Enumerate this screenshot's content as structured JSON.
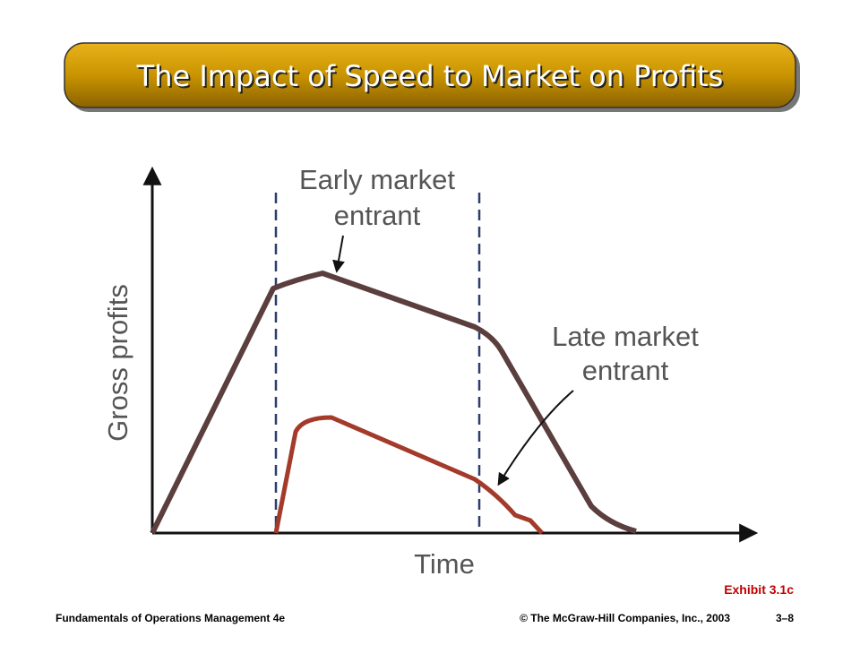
{
  "header": {
    "title": "The Impact of Speed to Market on Profits"
  },
  "diagram": {
    "y_axis_label": "Gross profits",
    "x_axis_label": "Time",
    "early_label": [
      "Early market",
      "entrant"
    ],
    "late_label": [
      "Late market",
      "entrant"
    ]
  },
  "exhibit": "Exhibit 3.1c",
  "footer": {
    "left": "Fundamentals of Operations Management 4e",
    "center": "© The McGraw-Hill Companies, Inc., 2003",
    "right": "3–8"
  }
}
